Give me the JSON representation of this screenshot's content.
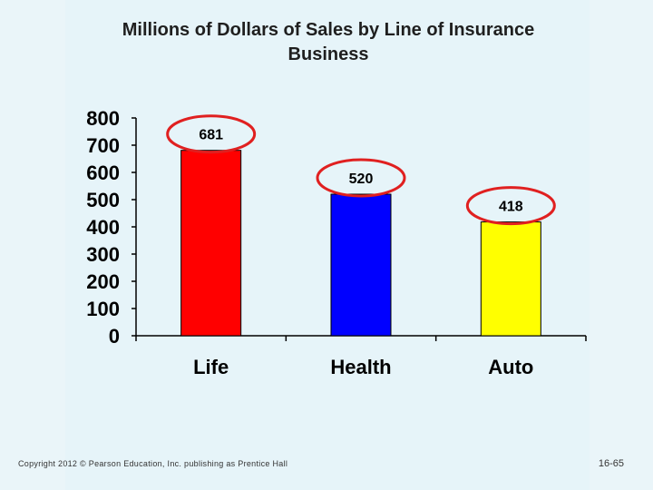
{
  "slide": {
    "copyright": "Copyright 2012 © Pearson Education, Inc. publishing as Prentice Hall",
    "page_number": "16-65"
  },
  "colors": {
    "background": "#e6f4f9",
    "life": "#ff0000",
    "health": "#0000ff",
    "auto": "#ffff00",
    "highlight_ellipse": "#e02020"
  },
  "chart_data": {
    "type": "bar",
    "title": "Millions of Dollars of Sales by Line of Insurance Business",
    "categories": [
      "Life",
      "Health",
      "Auto"
    ],
    "values": [
      681,
      520,
      418
    ],
    "data_labels": [
      "681",
      "520",
      "418"
    ],
    "ylim": [
      0,
      800
    ],
    "yticks": [
      0,
      100,
      200,
      300,
      400,
      500,
      600,
      700,
      800
    ],
    "xlabel": "",
    "ylabel": "",
    "grid": false,
    "annotations": "each data label is circled with a red ellipse"
  }
}
